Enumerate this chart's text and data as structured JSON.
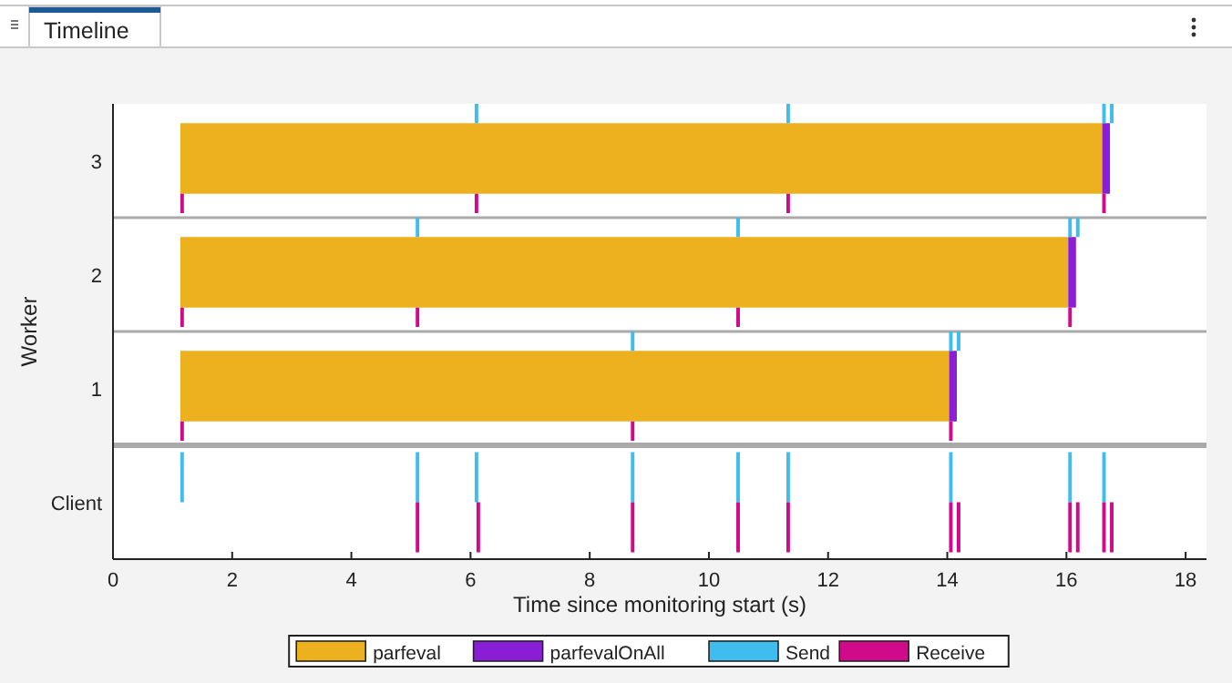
{
  "chart_data": {
    "type": "bar",
    "orientation": "horizontal",
    "title": "Timeline",
    "xlabel": "Time since monitoring start (s)",
    "ylabel": "Worker",
    "categories": [
      "3",
      "2",
      "1",
      "Client"
    ],
    "series": [
      {
        "name": "parfeval",
        "color": "#edb120",
        "base": [
          1.13,
          1.13,
          1.13,
          null
        ],
        "values": [
          15.47,
          14.9,
          12.9,
          null
        ]
      },
      {
        "name": "parfevalOnAll",
        "color": "#8a1ed6",
        "base": [
          16.6,
          16.03,
          14.03,
          null
        ],
        "values": [
          0.13,
          0.13,
          0.13,
          null
        ]
      },
      {
        "name": "Send",
        "color": "#3fbdee",
        "base": [
          6.07,
          5.08,
          8.69,
          1.13
        ],
        "values": [
          0.06,
          0.06,
          0.06,
          0.06
        ]
      },
      {
        "color": "#3fbdee",
        "base": [
          11.3,
          10.46,
          14.03,
          5.08
        ],
        "values": [
          0.06,
          0.06,
          0.06,
          0.06
        ]
      },
      {
        "color": "#3fbdee",
        "base": [
          16.6,
          16.03,
          14.16,
          6.07
        ],
        "values": [
          0.06,
          0.06,
          0.06,
          0.06
        ]
      },
      {
        "color": "#3fbdee",
        "base": [
          16.73,
          16.16,
          null,
          8.69
        ],
        "values": [
          0.06,
          0.06,
          null,
          0.06
        ]
      },
      {
        "color": "#3fbdee",
        "base": [
          null,
          null,
          null,
          10.46
        ],
        "values": [
          null,
          null,
          null,
          0.06
        ]
      },
      {
        "color": "#3fbdee",
        "base": [
          null,
          null,
          null,
          11.3
        ],
        "values": [
          null,
          null,
          null,
          0.06
        ]
      },
      {
        "color": "#3fbdee",
        "base": [
          null,
          null,
          null,
          14.03
        ],
        "values": [
          null,
          null,
          null,
          0.06
        ]
      },
      {
        "color": "#3fbdee",
        "base": [
          null,
          null,
          null,
          16.03
        ],
        "values": [
          null,
          null,
          null,
          0.06
        ]
      },
      {
        "color": "#3fbdee",
        "base": [
          null,
          null,
          null,
          16.6
        ],
        "values": [
          null,
          null,
          null,
          0.06
        ]
      },
      {
        "name": "Receive",
        "color": "#d10a8c",
        "base": [
          1.13,
          1.13,
          1.13,
          5.08
        ],
        "values": [
          0.06,
          0.06,
          0.06,
          0.06
        ]
      },
      {
        "color": "#d10a8c",
        "base": [
          6.07,
          5.08,
          8.69,
          6.1
        ],
        "values": [
          0.06,
          0.06,
          0.06,
          0.06
        ]
      },
      {
        "color": "#d10a8c",
        "base": [
          11.3,
          10.46,
          14.03,
          8.69
        ],
        "values": [
          0.06,
          0.06,
          0.06,
          0.06
        ]
      },
      {
        "color": "#d10a8c",
        "base": [
          16.6,
          16.03,
          null,
          10.46
        ],
        "values": [
          0.06,
          0.06,
          null,
          0.06
        ]
      },
      {
        "color": "#d10a8c",
        "base": [
          null,
          null,
          null,
          11.3
        ],
        "values": [
          null,
          null,
          null,
          0.06
        ]
      },
      {
        "color": "#d10a8c",
        "base": [
          null,
          null,
          null,
          14.03
        ],
        "values": [
          null,
          null,
          null,
          0.06
        ]
      },
      {
        "color": "#d10a8c",
        "base": [
          null,
          null,
          null,
          14.16
        ],
        "values": [
          null,
          null,
          null,
          0.06
        ]
      },
      {
        "color": "#d10a8c",
        "base": [
          null,
          null,
          null,
          16.03
        ],
        "values": [
          null,
          null,
          null,
          0.06
        ]
      },
      {
        "color": "#d10a8c",
        "base": [
          null,
          null,
          null,
          16.16
        ],
        "values": [
          null,
          null,
          null,
          0.06
        ]
      },
      {
        "color": "#d10a8c",
        "base": [
          null,
          null,
          null,
          16.6
        ],
        "values": [
          null,
          null,
          null,
          0.06
        ]
      },
      {
        "color": "#d10a8c",
        "base": [
          null,
          null,
          null,
          16.73
        ],
        "values": [
          null,
          null,
          null,
          0.06
        ]
      }
    ],
    "xlim": [
      0,
      18.35
    ],
    "xticks": [
      0,
      2,
      4,
      6,
      8,
      10,
      12,
      14,
      16,
      18
    ],
    "legend": "bottom"
  }
}
